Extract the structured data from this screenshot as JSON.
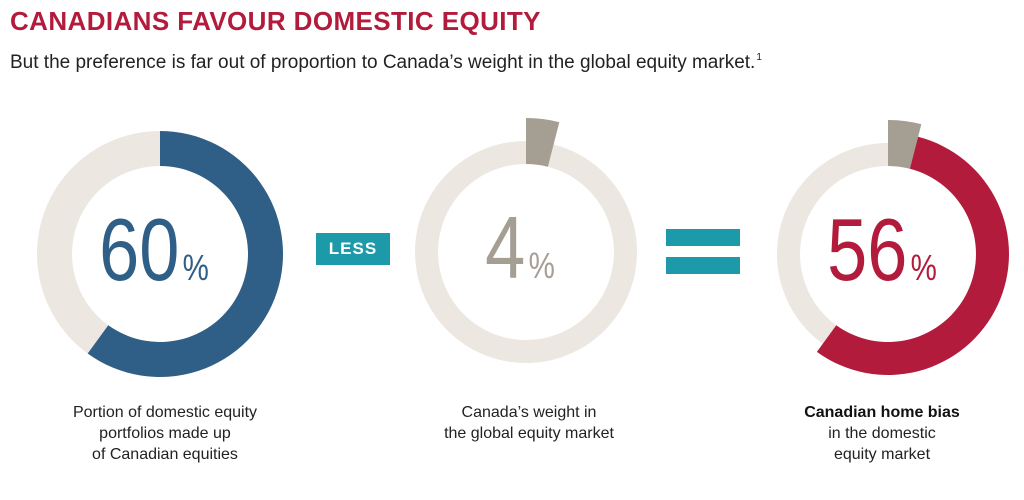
{
  "title": "CANADIANS FAVOUR DOMESTIC EQUITY",
  "subtitle": "But the preference is far out of proportion to Canada’s weight in the global equity market.",
  "subtitle_footnote": "1",
  "operators": {
    "minus": "LESS",
    "equals": "="
  },
  "colors": {
    "title": "#b31b3c",
    "track": "#ece7e0",
    "domestic": "#2f5f87",
    "global_weight": "#a59e93",
    "home_bias": "#b31b3c",
    "operator": "#1d9aaa"
  },
  "chart_data": {
    "type": "pie",
    "charts": [
      {
        "value": 60,
        "unit": "%",
        "caption_lines": [
          "Portion of domestic equity",
          "portfolios made up",
          "of Canadian equities"
        ],
        "caption_bold_line": ""
      },
      {
        "value": 4,
        "unit": "%",
        "caption_lines": [
          "Canada’s weight in",
          "the global equity market"
        ],
        "caption_bold_line": ""
      },
      {
        "value": 56,
        "unit": "%",
        "offset": 4,
        "caption_bold_line": "Canadian home bias",
        "caption_lines": [
          "in the domestic",
          "equity market"
        ]
      }
    ]
  }
}
